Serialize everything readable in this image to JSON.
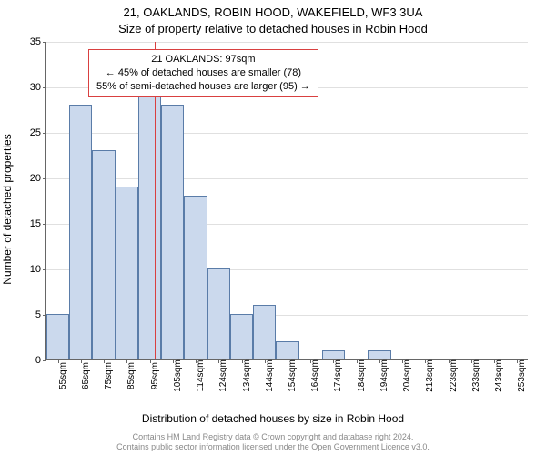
{
  "title_line1": "21, OAKLANDS, ROBIN HOOD, WAKEFIELD, WF3 3UA",
  "title_line2": "Size of property relative to detached houses in Robin Hood",
  "ylabel": "Number of detached properties",
  "xlabel": "Distribution of detached houses by size in Robin Hood",
  "footer_line1": "Contains HM Land Registry data © Crown copyright and database right 2024.",
  "footer_line2": "Contains public sector information licensed under the Open Government Licence v3.0.",
  "chart": {
    "type": "histogram",
    "ylim": [
      0,
      35
    ],
    "ytick_step": 5,
    "categories": [
      "55sqm",
      "65sqm",
      "75sqm",
      "85sqm",
      "95sqm",
      "105sqm",
      "114sqm",
      "124sqm",
      "134sqm",
      "144sqm",
      "154sqm",
      "164sqm",
      "174sqm",
      "184sqm",
      "194sqm",
      "204sqm",
      "213sqm",
      "223sqm",
      "233sqm",
      "243sqm",
      "253sqm"
    ],
    "values": [
      5,
      28,
      23,
      19,
      29,
      28,
      18,
      10,
      5,
      6,
      2,
      0,
      1,
      0,
      1,
      0,
      0,
      0,
      0,
      0,
      0
    ],
    "bar_fill": "#cbd9ed",
    "bar_stroke": "#5a7ca8",
    "grid_color": "#e0e0e0",
    "axis_color": "#666666",
    "marker_index": 4.2,
    "marker_color": "#d94040",
    "annotation": {
      "line1": "21 OAKLANDS: 97sqm",
      "line2": "← 45% of detached houses are smaller (78)",
      "line3": "55% of semi-detached houses are larger (95) →",
      "border_color": "#d94040"
    }
  }
}
